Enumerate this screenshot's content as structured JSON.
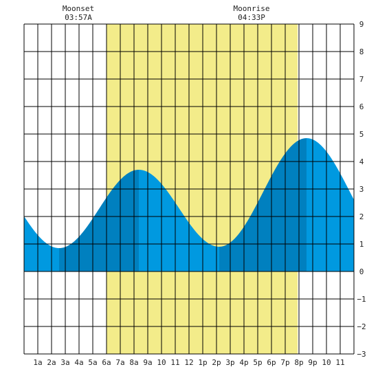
{
  "chart_data": {
    "type": "area",
    "title": "",
    "xlabel": "",
    "ylabel": "",
    "x_range_hours": [
      0,
      24
    ],
    "ylim": [
      -3,
      9
    ],
    "y_ticks": [
      -3,
      -2,
      -1,
      0,
      1,
      2,
      3,
      4,
      5,
      6,
      7,
      8,
      9
    ],
    "x_tick_labels": [
      "1a",
      "2a",
      "3a",
      "4a",
      "5a",
      "6a",
      "7a",
      "8a",
      "9a",
      "10",
      "11",
      "12",
      "1p",
      "2p",
      "3p",
      "4p",
      "5p",
      "6p",
      "7p",
      "8p",
      "9p",
      "10",
      "11"
    ],
    "grid": true,
    "daylight_hours": [
      6.0,
      19.9
    ],
    "annotations": [
      {
        "name": "Moonset",
        "time": "03:57A",
        "hour": 3.95
      },
      {
        "name": "Moonrise",
        "time": "04:33P",
        "hour": 16.55
      }
    ],
    "tide_extremes": [
      {
        "hour": 2.55,
        "height": 0.85,
        "kind": "low"
      },
      {
        "hour": 8.35,
        "height": 3.7,
        "kind": "high"
      },
      {
        "hour": 14.2,
        "height": 0.9,
        "kind": "low"
      },
      {
        "hour": 20.55,
        "height": 4.85,
        "kind": "high"
      }
    ],
    "start_height": 2.1,
    "end_height": 2.5,
    "colors": {
      "daylight": "#f3ec8a",
      "tide_light": "#0099e0",
      "tide_dark": "#0080bf",
      "grid": "#000000"
    }
  }
}
